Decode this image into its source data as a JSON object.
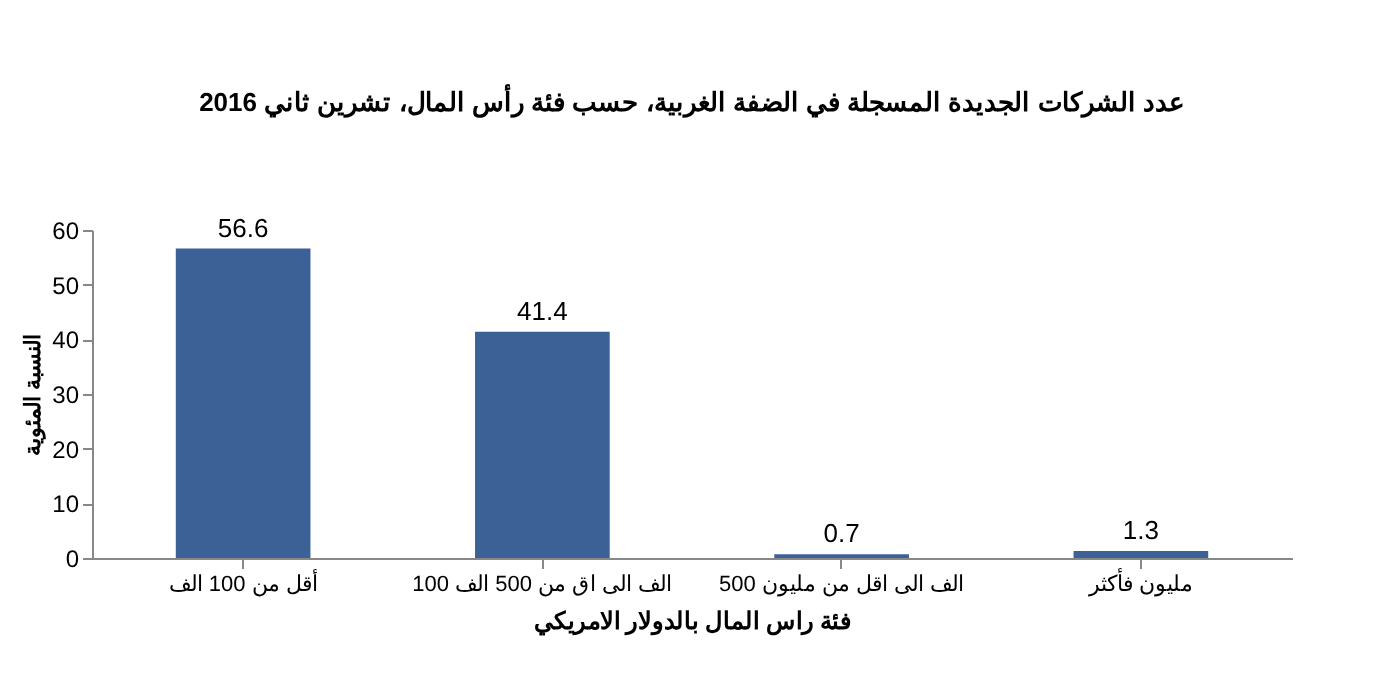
{
  "chart_data": {
    "type": "bar",
    "title": "عدد الشركات الجديدة المسجلة في الضفة الغربية، حسب فئة رأس المال، تشرين ثاني 2016",
    "xlabel": "فئة راس المال بالدولار الامريكي",
    "ylabel": "النسبة المئوية",
    "categories": [
      "أقل من 100 الف",
      "100 الف الى اق من 500 الف",
      "500 الف الى اقل من مليون",
      "مليون فأكثر"
    ],
    "values": [
      56.6,
      41.4,
      0.7,
      1.3
    ],
    "color": "#3b6196",
    "ylim": [
      0,
      60
    ],
    "yticks": [
      0,
      10,
      20,
      30,
      40,
      50,
      60
    ],
    "data_labels": true
  }
}
